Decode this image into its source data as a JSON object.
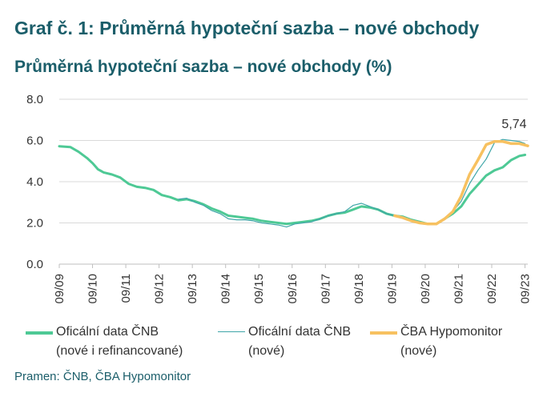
{
  "header": {
    "graf_title": "Graf č. 1: Průměrná hypoteční sazba – nové obchody"
  },
  "source": "Pramen: ČNB, ČBA Hypomonitor",
  "chart_data": {
    "type": "line",
    "title": "Průměrná hypoteční sazba – nové obchody (%)",
    "ylim": [
      0,
      8
    ],
    "y_ticks": [
      "0.0",
      "2.0",
      "4.0",
      "6.0",
      "8.0"
    ],
    "x_range": [
      2009.667,
      2023.75
    ],
    "x_ticks": [
      {
        "label": "09/09",
        "x": 2009.667
      },
      {
        "label": "09/10",
        "x": 2010.667
      },
      {
        "label": "09/11",
        "x": 2011.667
      },
      {
        "label": "09/12",
        "x": 2012.667
      },
      {
        "label": "09/13",
        "x": 2013.667
      },
      {
        "label": "09/14",
        "x": 2014.667
      },
      {
        "label": "09/15",
        "x": 2015.667
      },
      {
        "label": "09/16",
        "x": 2016.667
      },
      {
        "label": "09/17",
        "x": 2017.667
      },
      {
        "label": "09/18",
        "x": 2018.667
      },
      {
        "label": "09/19",
        "x": 2019.667
      },
      {
        "label": "09/20",
        "x": 2020.667
      },
      {
        "label": "09/21",
        "x": 2021.667
      },
      {
        "label": "09/22",
        "x": 2022.667
      },
      {
        "label": "09/23",
        "x": 2023.667
      }
    ],
    "grid": "horizontal",
    "legend_position": "bottom",
    "annotation": {
      "text": "5,74",
      "x": 2023.75,
      "y": 5.74
    },
    "series": [
      {
        "name": "Oficální data ČNB (nové i refinancované)",
        "legend_line1": "Oficální data ČNB",
        "legend_line2": "(nové i refinancované)",
        "color": "#4ec995",
        "x": [
          2009.667,
          2010.0,
          2010.25,
          2010.5,
          2010.667,
          2010.833,
          2011.0,
          2011.25,
          2011.5,
          2011.75,
          2012.0,
          2012.25,
          2012.5,
          2012.75,
          2013.0,
          2013.25,
          2013.5,
          2013.75,
          2014.0,
          2014.25,
          2014.5,
          2014.75,
          2015.0,
          2015.25,
          2015.5,
          2015.75,
          2016.0,
          2016.25,
          2016.5,
          2016.75,
          2017.0,
          2017.25,
          2017.5,
          2017.75,
          2018.0,
          2018.25,
          2018.5,
          2018.75,
          2019.0,
          2019.25,
          2019.5,
          2019.75,
          2020.0,
          2020.25,
          2020.5,
          2020.75,
          2021.0,
          2021.25,
          2021.5,
          2021.75,
          2022.0,
          2022.25,
          2022.5,
          2022.75,
          2023.0,
          2023.25,
          2023.5,
          2023.667
        ],
        "y": [
          5.72,
          5.68,
          5.45,
          5.15,
          4.9,
          4.6,
          4.45,
          4.35,
          4.2,
          3.9,
          3.75,
          3.7,
          3.6,
          3.35,
          3.25,
          3.1,
          3.15,
          3.05,
          2.9,
          2.7,
          2.55,
          2.35,
          2.3,
          2.25,
          2.2,
          2.1,
          2.05,
          2.0,
          1.95,
          2.0,
          2.05,
          2.1,
          2.2,
          2.35,
          2.45,
          2.5,
          2.65,
          2.8,
          2.75,
          2.65,
          2.45,
          2.35,
          2.3,
          2.15,
          2.05,
          1.95,
          1.95,
          2.2,
          2.45,
          2.8,
          3.4,
          3.85,
          4.3,
          4.55,
          4.7,
          5.05,
          5.25,
          5.3
        ]
      },
      {
        "name": "Oficální data ČNB (nové)",
        "legend_line1": "Oficální data ČNB",
        "legend_line2": "(nové)",
        "color": "#3fa6a8",
        "x": [
          2013.25,
          2013.5,
          2013.75,
          2014.0,
          2014.25,
          2014.5,
          2014.75,
          2015.0,
          2015.25,
          2015.5,
          2015.75,
          2016.0,
          2016.25,
          2016.5,
          2016.75,
          2017.0,
          2017.25,
          2017.5,
          2017.75,
          2018.0,
          2018.25,
          2018.5,
          2018.75,
          2019.0,
          2019.25,
          2019.5,
          2019.75,
          2020.0,
          2020.25,
          2020.5,
          2020.75,
          2021.0,
          2021.25,
          2021.5,
          2021.75,
          2022.0,
          2022.25,
          2022.5,
          2022.75,
          2023.0,
          2023.25,
          2023.5,
          2023.667
        ],
        "y": [
          3.15,
          3.2,
          3.0,
          2.85,
          2.6,
          2.45,
          2.2,
          2.15,
          2.15,
          2.1,
          2.0,
          1.95,
          1.9,
          1.8,
          1.95,
          2.0,
          2.05,
          2.2,
          2.35,
          2.45,
          2.55,
          2.85,
          2.95,
          2.8,
          2.65,
          2.45,
          2.35,
          2.3,
          2.15,
          2.05,
          1.95,
          1.95,
          2.25,
          2.55,
          3.05,
          3.9,
          4.55,
          5.1,
          5.9,
          6.05,
          6.0,
          5.95,
          5.85
        ]
      },
      {
        "name": "ČBA Hypomonitor (nové)",
        "legend_line1": "ČBA Hypomonitor",
        "legend_line2": "(nové)",
        "color": "#f7c160",
        "x": [
          2019.75,
          2020.0,
          2020.25,
          2020.5,
          2020.75,
          2021.0,
          2021.25,
          2021.5,
          2021.75,
          2022.0,
          2022.25,
          2022.5,
          2022.75,
          2023.0,
          2023.25,
          2023.5,
          2023.75
        ],
        "y": [
          2.35,
          2.25,
          2.1,
          2.0,
          1.95,
          1.95,
          2.2,
          2.55,
          3.3,
          4.35,
          5.05,
          5.8,
          5.95,
          5.95,
          5.85,
          5.85,
          5.74
        ]
      }
    ]
  }
}
